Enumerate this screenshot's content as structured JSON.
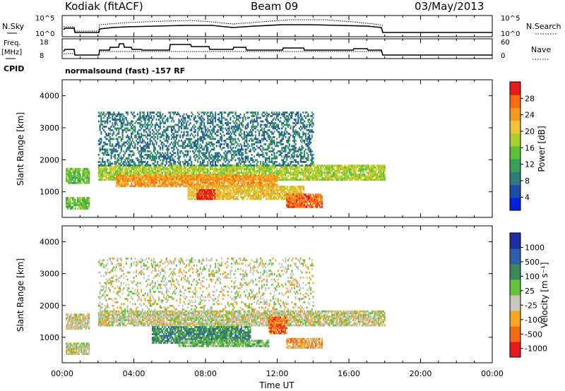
{
  "header": {
    "station": "Kodiak (fitACF)",
    "beam": "Beam 09",
    "date": "03/May/2013"
  },
  "params_panel": {
    "nsky_label": "N.Sky",
    "nsearch_label": "N.Search",
    "nsky_ticks": [
      "10^5",
      "10^0"
    ],
    "nsearch_ticks": [
      "10^5",
      "10^0"
    ],
    "freq_label_top": "Freq.",
    "freq_label_bottom": "[MHz]",
    "freq_ticks": [
      "18",
      "8"
    ],
    "nave_label": "Nave",
    "nave_ticks": [
      "60",
      "0"
    ],
    "cpid_label": "CPID",
    "cpid_text": "normalsound (fast) -157 RF"
  },
  "chart_data": [
    {
      "type": "heatmap",
      "name": "power",
      "ylabel": "Slant Range [km]",
      "ylim": [
        200,
        4500
      ],
      "yticks": [
        1000,
        2000,
        3000,
        4000
      ],
      "xlim": [
        0,
        24
      ],
      "colorbar_label": "Power [dB]",
      "colorbar_ticks": [
        "28",
        "24",
        "20",
        "16",
        "12",
        "8",
        "4"
      ],
      "colors": [
        "#0022dd",
        "#1e4eaa",
        "#2e7b79",
        "#3aa055",
        "#5cc13a",
        "#a8cf2c",
        "#f2c23a",
        "#f39a1e",
        "#ff6a14",
        "#e81b1b"
      ],
      "echo_bands": [
        {
          "t_start": 0.2,
          "t_end": 1.5,
          "r_low": 1250,
          "r_high": 1700,
          "level": 4
        },
        {
          "t_start": 0.2,
          "t_end": 1.5,
          "r_low": 450,
          "r_high": 800,
          "level": 4
        },
        {
          "t_start": 2.0,
          "t_end": 18.0,
          "r_low": 1350,
          "r_high": 1800,
          "level": 5
        },
        {
          "t_start": 3.0,
          "t_end": 12.0,
          "r_low": 1150,
          "r_high": 1500,
          "level": 7
        },
        {
          "t_start": 7.0,
          "t_end": 13.5,
          "r_low": 750,
          "r_high": 1150,
          "level": 6
        },
        {
          "t_start": 7.5,
          "t_end": 8.5,
          "r_low": 750,
          "r_high": 1050,
          "level": 9
        },
        {
          "t_start": 12.5,
          "t_end": 14.5,
          "r_low": 500,
          "r_high": 900,
          "level": 8
        },
        {
          "t_start": 2.0,
          "t_end": 14.0,
          "r_low": 1800,
          "r_high": 3500,
          "level": 2
        }
      ]
    },
    {
      "type": "heatmap",
      "name": "velocity",
      "ylabel": "Slant Range [km]",
      "xlabel": "Time UT",
      "ylim": [
        200,
        4500
      ],
      "yticks": [
        1000,
        2000,
        3000,
        4000
      ],
      "xlim": [
        0,
        24
      ],
      "xticks": [
        "00:00",
        "04:00",
        "08:00",
        "12:00",
        "16:00",
        "20:00",
        "00:00"
      ],
      "colorbar_label": "Velocity [m s⁻¹]",
      "colorbar_ticks": [
        "1000",
        "500",
        "100",
        "25",
        "-25",
        "-100",
        "-500",
        "-1000"
      ],
      "colors": [
        "#1e2ea8",
        "#2e5fa8",
        "#3a8a5a",
        "#66c33a",
        "#c6c6bf",
        "#f5a623",
        "#f36b14",
        "#e81b1b"
      ],
      "echo_bands": [
        {
          "t_start": 0.2,
          "t_end": 1.5,
          "r_low": 1250,
          "r_high": 1700,
          "level": 4
        },
        {
          "t_start": 0.2,
          "t_end": 1.5,
          "r_low": 450,
          "r_high": 800,
          "level": 4
        },
        {
          "t_start": 2.0,
          "t_end": 18.0,
          "r_low": 1350,
          "r_high": 1800,
          "level": 4
        },
        {
          "t_start": 5.0,
          "t_end": 10.5,
          "r_low": 800,
          "r_high": 1300,
          "level": 2
        },
        {
          "t_start": 6.5,
          "t_end": 11.5,
          "r_low": 700,
          "r_high": 900,
          "level": 3
        },
        {
          "t_start": 12.5,
          "t_end": 14.5,
          "r_low": 650,
          "r_high": 950,
          "level": 5
        },
        {
          "t_start": 11.5,
          "t_end": 12.5,
          "r_low": 1100,
          "r_high": 1600,
          "level": 6
        },
        {
          "t_start": 2.0,
          "t_end": 14.0,
          "r_low": 1800,
          "r_high": 3500,
          "level": 4
        }
      ]
    }
  ]
}
